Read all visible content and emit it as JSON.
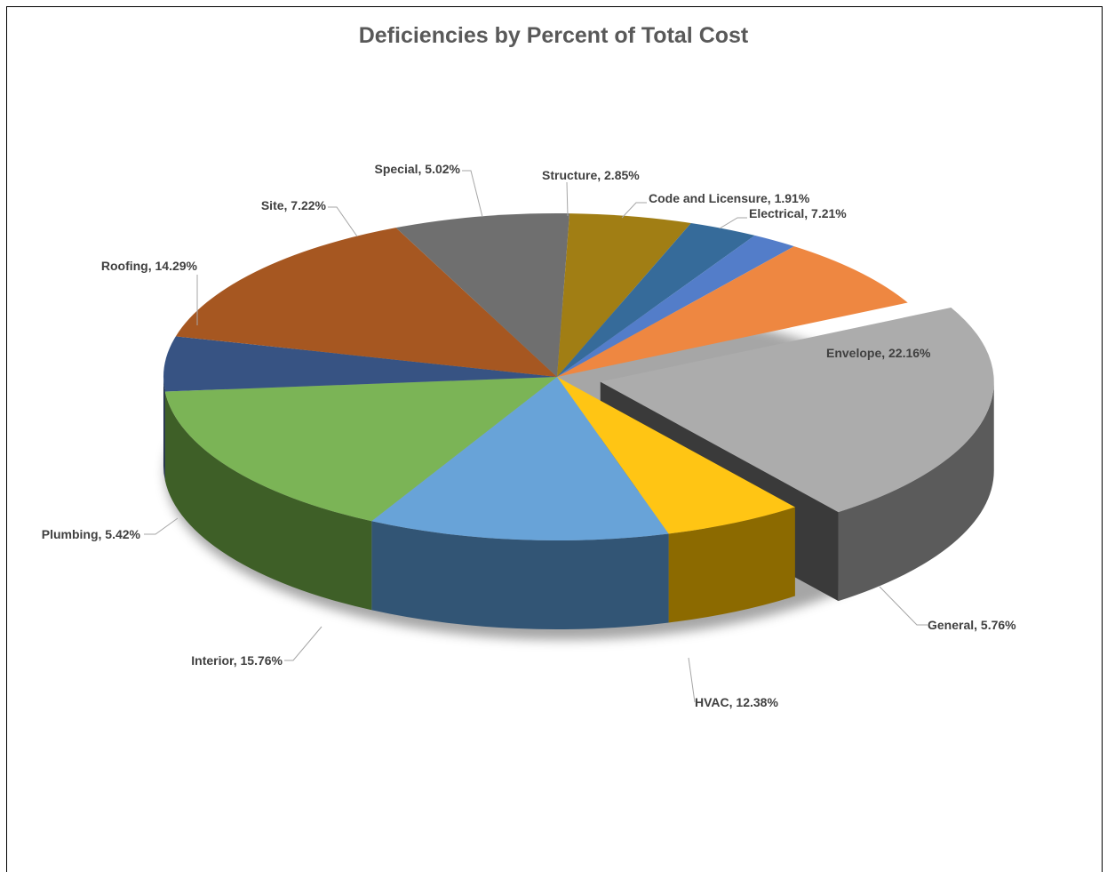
{
  "chart_data": {
    "type": "pie",
    "title": "Deficiencies by Percent of Total Cost",
    "three_d": true,
    "exploded": [
      "Envelope"
    ],
    "slices": [
      {
        "name": "Envelope",
        "value": 22.16,
        "label": "Envelope, 22.16%",
        "color": "#a5a5a5"
      },
      {
        "name": "General",
        "value": 5.76,
        "label": "General, 5.76%",
        "color": "#ffc000"
      },
      {
        "name": "HVAC",
        "value": 12.38,
        "label": "HVAC, 12.38%",
        "color": "#5b9bd5"
      },
      {
        "name": "Interior",
        "value": 15.76,
        "label": "Interior, 15.76%",
        "color": "#70ad47"
      },
      {
        "name": "Plumbing",
        "value": 5.42,
        "label": "Plumbing, 5.42%",
        "color": "#264478"
      },
      {
        "name": "Roofing",
        "value": 14.29,
        "label": "Roofing, 14.29%",
        "color": "#9e480e"
      },
      {
        "name": "Site",
        "value": 7.22,
        "label": "Site, 7.22%",
        "color": "#636363"
      },
      {
        "name": "Special",
        "value": 5.02,
        "label": "Special, 5.02%",
        "color": "#997300"
      },
      {
        "name": "Structure",
        "value": 2.85,
        "label": "Structure, 2.85%",
        "color": "#255e91"
      },
      {
        "name": "Code and Licensure",
        "value": 1.91,
        "label": "Code and Licensure, 1.91%",
        "color": "#4472c4"
      },
      {
        "name": "Electrical",
        "value": 7.21,
        "label": "Electrical, 7.21%",
        "color": "#ed7d31"
      }
    ]
  }
}
